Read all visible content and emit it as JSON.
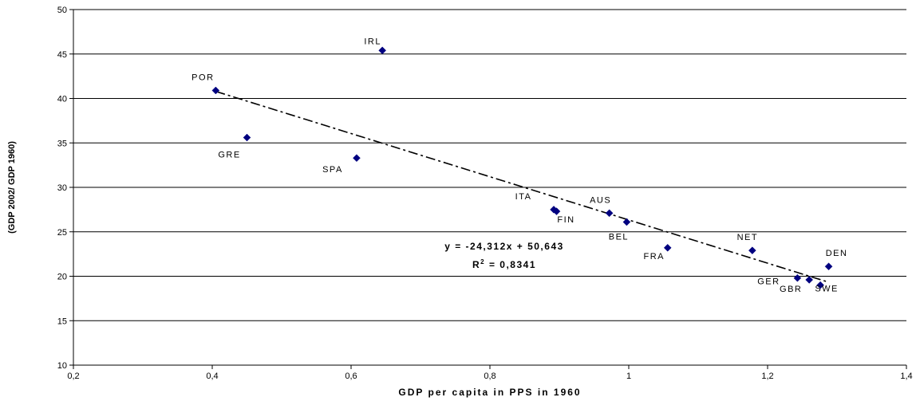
{
  "chart_data": {
    "type": "scatter",
    "xlabel": "GDP per capita in PPS in 1960",
    "ylabel": "(GDP 2002/ GDP 1960)",
    "xlim": [
      0.2,
      1.4
    ],
    "ylim": [
      10,
      50
    ],
    "x_ticks": [
      "0,2",
      "0,4",
      "0,6",
      "0,8",
      "1",
      "1,2",
      "1,4"
    ],
    "y_ticks": [
      "10",
      "15",
      "20",
      "25",
      "30",
      "35",
      "40",
      "45",
      "50"
    ],
    "grid": "horizontal",
    "marker_color": "#000080",
    "points": [
      {
        "label": "IRL",
        "x": 0.645,
        "y": 45.4
      },
      {
        "label": "POR",
        "x": 0.405,
        "y": 40.9
      },
      {
        "label": "GRE",
        "x": 0.45,
        "y": 35.6
      },
      {
        "label": "SPA",
        "x": 0.608,
        "y": 33.3
      },
      {
        "label": "ITA",
        "x": 0.892,
        "y": 27.5
      },
      {
        "label": "FIN",
        "x": 0.896,
        "y": 27.3
      },
      {
        "label": "AUS",
        "x": 0.972,
        "y": 27.1
      },
      {
        "label": "BEL",
        "x": 0.997,
        "y": 26.1
      },
      {
        "label": "FRA",
        "x": 1.056,
        "y": 23.2
      },
      {
        "label": "NET",
        "x": 1.178,
        "y": 22.9
      },
      {
        "label": "DEN",
        "x": 1.288,
        "y": 21.1
      },
      {
        "label": "GER",
        "x": 1.243,
        "y": 19.8
      },
      {
        "label": "GBR",
        "x": 1.26,
        "y": 19.6
      },
      {
        "label": "SWE",
        "x": 1.276,
        "y": 19.0
      }
    ],
    "trendline": {
      "slope": -24.312,
      "intercept": 50.643,
      "x_range": [
        0.405,
        1.285
      ],
      "style": "dash-dot",
      "equation": "y = -24,312x + 50,643",
      "r2_prefix": "R",
      "r2_sup": "2",
      "r2_value": " = 0,8341"
    }
  }
}
